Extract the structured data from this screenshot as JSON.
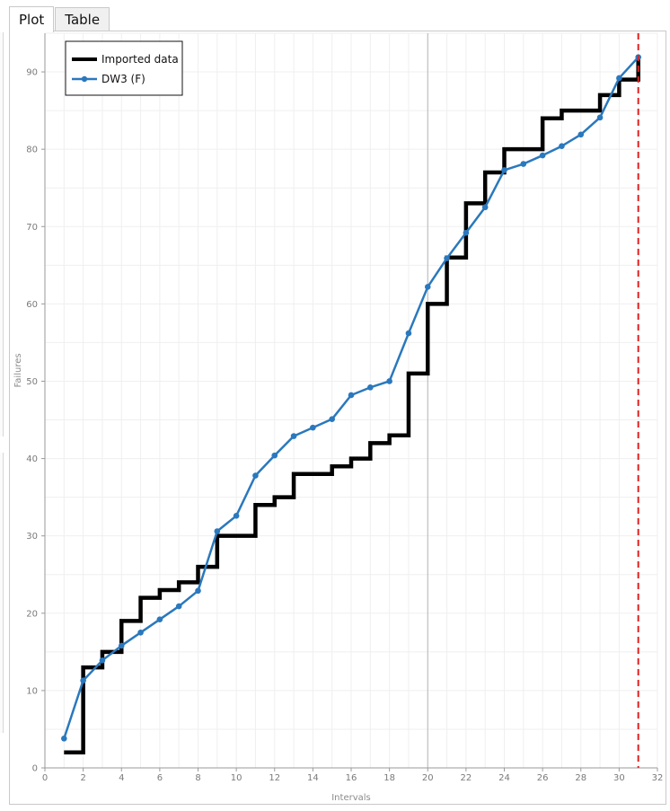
{
  "tabs": [
    {
      "label": "Plot",
      "active": true
    },
    {
      "label": "Table",
      "active": false
    }
  ],
  "chart_data": {
    "type": "line",
    "xlabel": "Intervals",
    "ylabel": "Failures",
    "xlim": [
      0,
      32
    ],
    "ylim": [
      0,
      95
    ],
    "x_ticks": [
      0,
      2,
      4,
      6,
      8,
      10,
      12,
      14,
      16,
      18,
      20,
      22,
      24,
      26,
      28,
      30,
      32
    ],
    "y_ticks": [
      0,
      10,
      20,
      30,
      40,
      50,
      60,
      70,
      80,
      90
    ],
    "grid": true,
    "legend_position": "top-left",
    "series": [
      {
        "name": "Imported data",
        "style": "step",
        "color": "#000000",
        "x": [
          1,
          2,
          3,
          4,
          5,
          6,
          7,
          8,
          9,
          10,
          11,
          12,
          13,
          14,
          15,
          16,
          17,
          18,
          19,
          20,
          21,
          22,
          23,
          24,
          25,
          26,
          27,
          28,
          29,
          30,
          31
        ],
        "values": [
          2,
          13,
          15,
          19,
          22,
          23,
          24,
          26,
          30,
          30,
          34,
          35,
          38,
          38,
          39,
          40,
          42,
          43,
          51,
          60,
          66,
          73,
          77,
          80,
          80,
          84,
          85,
          85,
          87,
          89,
          92
        ]
      },
      {
        "name": "DW3 (F)",
        "style": "line-markers",
        "color": "#2a78bd",
        "x": [
          1,
          2,
          3,
          4,
          5,
          6,
          7,
          8,
          9,
          10,
          11,
          12,
          13,
          14,
          15,
          16,
          17,
          18,
          19,
          20,
          21,
          22,
          23,
          24,
          25,
          26,
          27,
          28,
          29,
          30,
          31
        ],
        "values": [
          3.8,
          11.3,
          13.9,
          15.8,
          17.5,
          19.2,
          20.9,
          22.9,
          30.6,
          32.6,
          37.8,
          40.4,
          42.9,
          44.0,
          45.1,
          48.2,
          49.2,
          50.0,
          56.2,
          62.2,
          65.9,
          69.2,
          72.5,
          77.3,
          78.1,
          79.2,
          80.4,
          81.9,
          84.1,
          89.2,
          91.9
        ]
      }
    ],
    "vline": {
      "x": 31,
      "color": "#e02020",
      "style": "dashed"
    },
    "center_line": {
      "x": 20,
      "color": "#b5b5b5"
    }
  }
}
